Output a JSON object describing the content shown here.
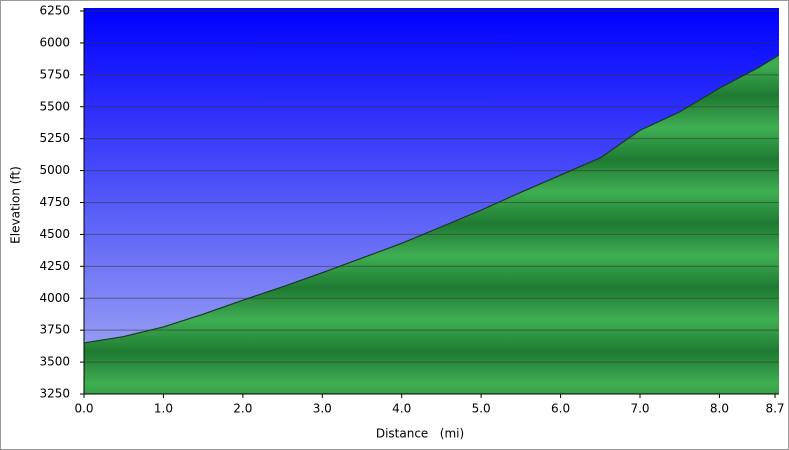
{
  "chart_data": {
    "type": "area",
    "x_label": "Distance   (mi)",
    "y_label": "Elevation (ft)",
    "x": [
      0,
      0.5,
      1,
      1.5,
      2,
      2.5,
      3,
      3.5,
      4,
      4.5,
      5,
      5.5,
      6,
      6.5,
      7,
      7.5,
      8,
      8.5,
      8.75
    ],
    "values": [
      3650,
      3700,
      3775,
      3875,
      3985,
      4090,
      4200,
      4315,
      4430,
      4560,
      4690,
      4830,
      4965,
      5100,
      5315,
      5460,
      5645,
      5810,
      5905
    ],
    "color": "#2e9a44",
    "line_color": "#1a3a22",
    "xlim": [
      0,
      8.75
    ],
    "ylim": [
      3250,
      6250
    ],
    "xticks": [
      {
        "value": 0,
        "label": "0.0"
      },
      {
        "value": 1,
        "label": "1.0"
      },
      {
        "value": 2,
        "label": "2.0"
      },
      {
        "value": 3,
        "label": "3.0"
      },
      {
        "value": 4,
        "label": "4.0"
      },
      {
        "value": 5,
        "label": "5.0"
      },
      {
        "value": 6,
        "label": "6.0"
      },
      {
        "value": 7,
        "label": "7.0"
      },
      {
        "value": 8,
        "label": "8.0"
      },
      8.7
    ],
    "yticks": [
      3250,
      3500,
      3750,
      4000,
      4250,
      4500,
      4750,
      5000,
      5250,
      5500,
      5750,
      6000,
      6250
    ],
    "grid": true
  }
}
